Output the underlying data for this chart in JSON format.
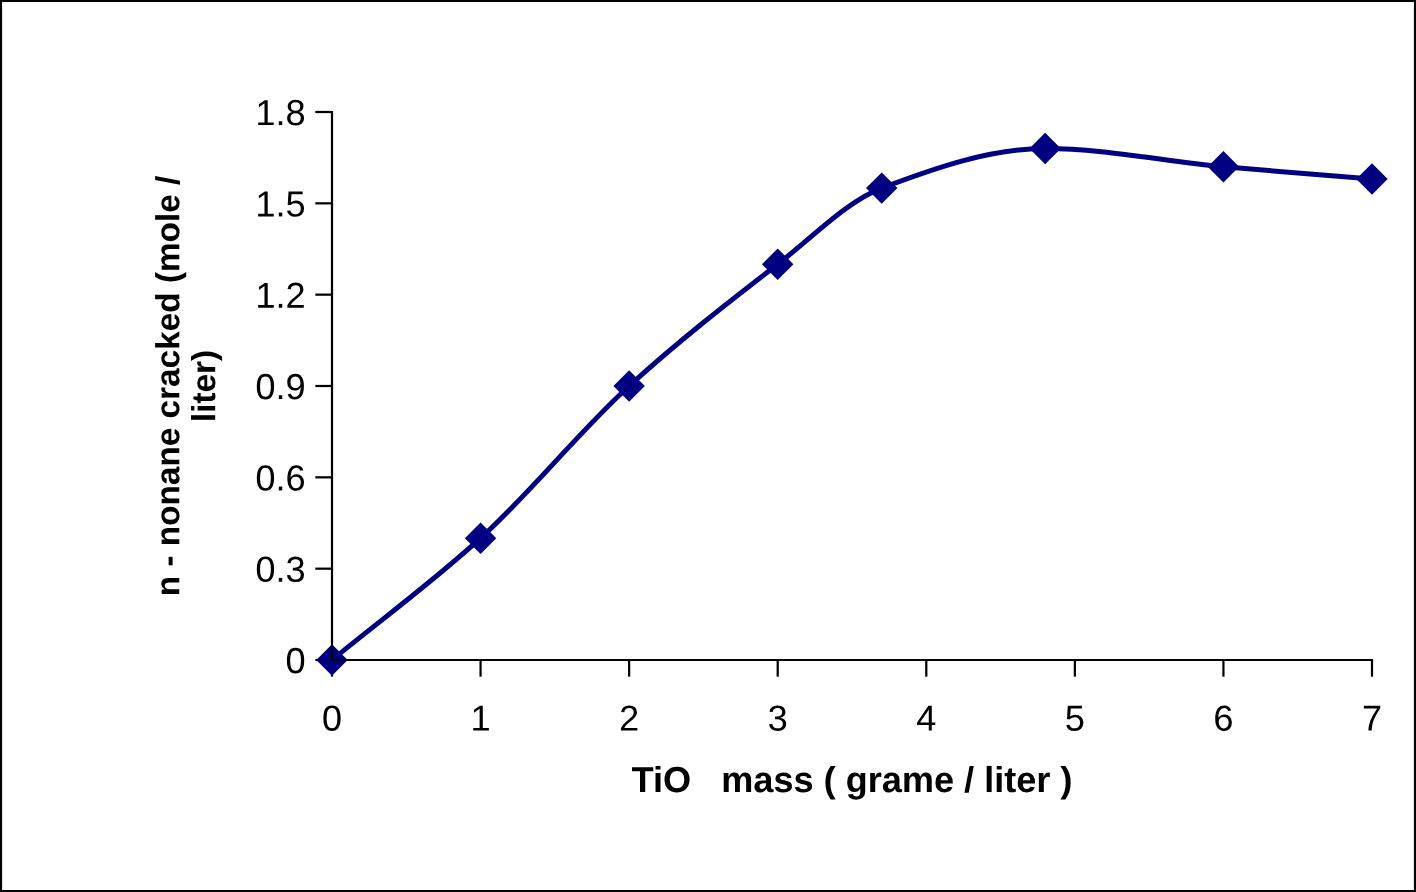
{
  "chart_data": {
    "type": "line",
    "xlabel": "TiO   mass ( grame / liter )",
    "ylabel": "n - nonane cracked (mole /\nliter)",
    "x": [
      0,
      1,
      2,
      3,
      3.7,
      4.8,
      6,
      7
    ],
    "series": [
      {
        "color": "#000080",
        "values": [
          0,
          0.4,
          0.9,
          1.3,
          1.55,
          1.68,
          1.62,
          1.58
        ]
      }
    ],
    "xlim": [
      0,
      7
    ],
    "xticks": [
      0,
      1,
      2,
      3,
      4,
      5,
      6,
      7
    ],
    "ylim": [
      0,
      1.8
    ],
    "yticks": [
      0,
      0.3,
      0.6,
      0.9,
      1.2,
      1.5,
      1.8
    ],
    "grid": false,
    "legend": false,
    "marker": "diamond",
    "line_style": "solid"
  }
}
